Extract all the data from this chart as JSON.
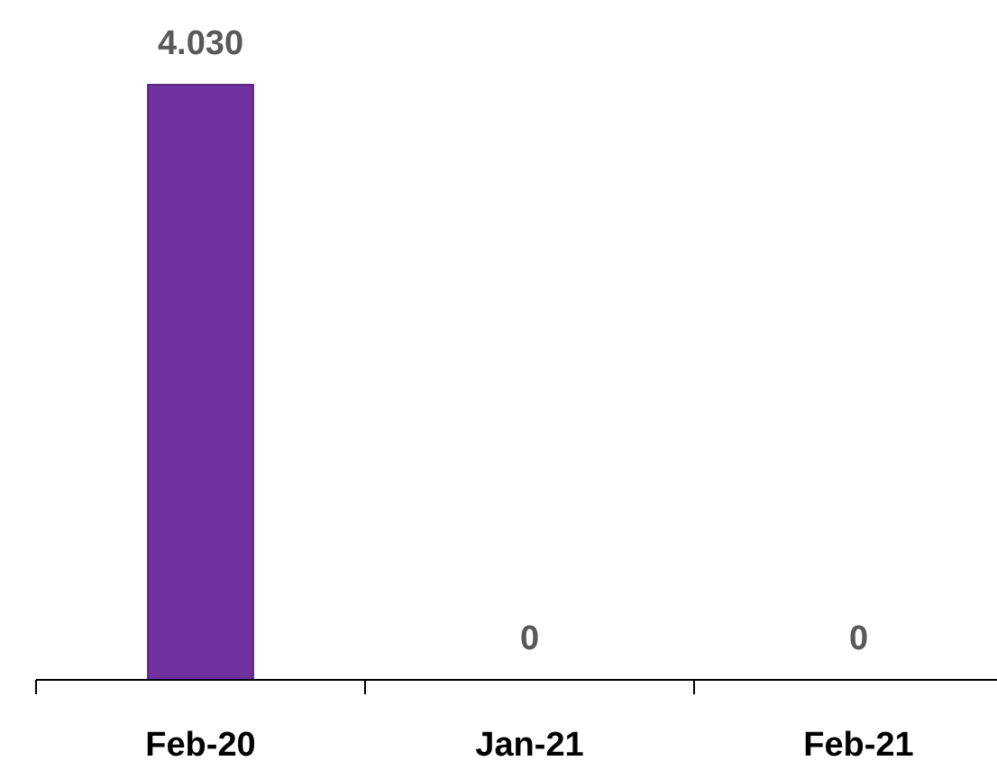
{
  "chart_data": {
    "type": "bar",
    "categories": [
      "Feb-20",
      "Jan-21",
      "Feb-21"
    ],
    "values": [
      4030,
      0,
      0
    ],
    "color": "#7030a0",
    "value_labels": [
      "4.030",
      "0",
      "0"
    ]
  }
}
